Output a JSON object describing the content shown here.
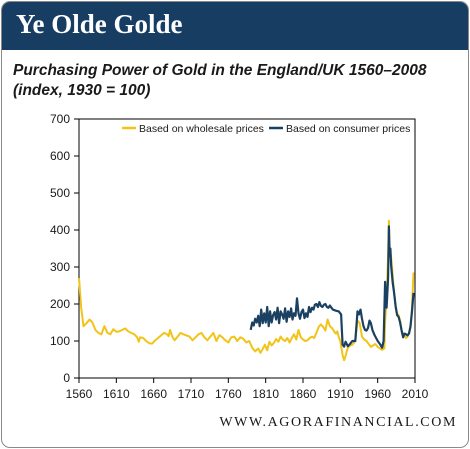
{
  "header": {
    "title": "Ye Olde Golde"
  },
  "subtitle": {
    "line1": "Purchasing Power of Gold in the England/UK 1560–2008",
    "line2": "(index, 1930 = 100)"
  },
  "footer": {
    "source": "WWW.AGORAFINANCIAL.COM"
  },
  "colors": {
    "header_bg": "#173d63",
    "wholesale": "#f2c318",
    "consumer": "#1b4162"
  },
  "chart_data": {
    "type": "line",
    "title": "Purchasing Power of Gold in the England/UK 1560–2008",
    "subtitle": "(index, 1930 = 100)",
    "xlim": [
      1560,
      2010
    ],
    "ylim": [
      0,
      700
    ],
    "x_ticks": [
      1560,
      1610,
      1660,
      1710,
      1760,
      1810,
      1860,
      1910,
      1960,
      2010
    ],
    "y_ticks": [
      0,
      100,
      200,
      300,
      400,
      500,
      600,
      700
    ],
    "grid": false,
    "legend_position": "top",
    "series": [
      {
        "name": "Based on wholesale prices",
        "color": "#f2c318",
        "points": [
          [
            1560,
            270
          ],
          [
            1563,
            190
          ],
          [
            1566,
            140
          ],
          [
            1570,
            148
          ],
          [
            1574,
            158
          ],
          [
            1578,
            150
          ],
          [
            1582,
            130
          ],
          [
            1586,
            122
          ],
          [
            1590,
            118
          ],
          [
            1594,
            140
          ],
          [
            1598,
            122
          ],
          [
            1602,
            118
          ],
          [
            1606,
            132
          ],
          [
            1610,
            125
          ],
          [
            1614,
            126
          ],
          [
            1618,
            130
          ],
          [
            1622,
            134
          ],
          [
            1626,
            126
          ],
          [
            1630,
            122
          ],
          [
            1634,
            118
          ],
          [
            1638,
            110
          ],
          [
            1640,
            98
          ],
          [
            1642,
            110
          ],
          [
            1646,
            108
          ],
          [
            1650,
            100
          ],
          [
            1654,
            94
          ],
          [
            1658,
            93
          ],
          [
            1662,
            102
          ],
          [
            1666,
            108
          ],
          [
            1670,
            115
          ],
          [
            1674,
            122
          ],
          [
            1678,
            118
          ],
          [
            1680,
            113
          ],
          [
            1682,
            130
          ],
          [
            1685,
            112
          ],
          [
            1688,
            102
          ],
          [
            1692,
            112
          ],
          [
            1696,
            122
          ],
          [
            1700,
            118
          ],
          [
            1704,
            115
          ],
          [
            1708,
            112
          ],
          [
            1712,
            102
          ],
          [
            1716,
            110
          ],
          [
            1720,
            118
          ],
          [
            1724,
            122
          ],
          [
            1728,
            110
          ],
          [
            1732,
            102
          ],
          [
            1736,
            112
          ],
          [
            1740,
            122
          ],
          [
            1744,
            100
          ],
          [
            1748,
            116
          ],
          [
            1752,
            110
          ],
          [
            1756,
            102
          ],
          [
            1760,
            96
          ],
          [
            1764,
            110
          ],
          [
            1768,
            112
          ],
          [
            1772,
            100
          ],
          [
            1776,
            110
          ],
          [
            1780,
            106
          ],
          [
            1784,
            96
          ],
          [
            1788,
            100
          ],
          [
            1792,
            82
          ],
          [
            1796,
            72
          ],
          [
            1800,
            80
          ],
          [
            1803,
            68
          ],
          [
            1806,
            78
          ],
          [
            1809,
            90
          ],
          [
            1812,
            75
          ],
          [
            1815,
            98
          ],
          [
            1818,
            88
          ],
          [
            1821,
            95
          ],
          [
            1824,
            105
          ],
          [
            1827,
            98
          ],
          [
            1830,
            112
          ],
          [
            1833,
            104
          ],
          [
            1836,
            100
          ],
          [
            1839,
            108
          ],
          [
            1842,
            96
          ],
          [
            1845,
            108
          ],
          [
            1848,
            118
          ],
          [
            1851,
            104
          ],
          [
            1854,
            130
          ],
          [
            1857,
            110
          ],
          [
            1860,
            104
          ],
          [
            1863,
            100
          ],
          [
            1866,
            102
          ],
          [
            1869,
            108
          ],
          [
            1872,
            112
          ],
          [
            1875,
            108
          ],
          [
            1878,
            122
          ],
          [
            1881,
            138
          ],
          [
            1884,
            145
          ],
          [
            1887,
            138
          ],
          [
            1890,
            128
          ],
          [
            1893,
            158
          ],
          [
            1896,
            140
          ],
          [
            1899,
            135
          ],
          [
            1902,
            125
          ],
          [
            1904,
            120
          ],
          [
            1906,
            126
          ],
          [
            1908,
            110
          ],
          [
            1910,
            100
          ],
          [
            1913,
            62
          ],
          [
            1915,
            48
          ],
          [
            1917,
            60
          ],
          [
            1920,
            82
          ],
          [
            1923,
            88
          ],
          [
            1926,
            90
          ],
          [
            1930,
            100
          ],
          [
            1933,
            155
          ],
          [
            1936,
            148
          ],
          [
            1939,
            112
          ],
          [
            1942,
            104
          ],
          [
            1945,
            100
          ],
          [
            1948,
            92
          ],
          [
            1951,
            84
          ],
          [
            1954,
            88
          ],
          [
            1957,
            92
          ],
          [
            1960,
            84
          ],
          [
            1963,
            80
          ],
          [
            1966,
            76
          ],
          [
            1969,
            80
          ],
          [
            1970,
            152
          ],
          [
            1972,
            218
          ],
          [
            1974,
            330
          ],
          [
            1975,
            425
          ],
          [
            1976,
            350
          ],
          [
            1978,
            328
          ],
          [
            1980,
            280
          ],
          [
            1982,
            230
          ],
          [
            1984,
            190
          ],
          [
            1986,
            175
          ],
          [
            1988,
            170
          ],
          [
            1990,
            155
          ],
          [
            1992,
            130
          ],
          [
            1994,
            118
          ],
          [
            1996,
            115
          ],
          [
            1998,
            108
          ],
          [
            2000,
            112
          ],
          [
            2002,
            122
          ],
          [
            2004,
            135
          ],
          [
            2006,
            190
          ],
          [
            2008,
            285
          ]
        ]
      },
      {
        "name": "Based on consumer prices",
        "color": "#1b4162",
        "points": [
          [
            1790,
            130
          ],
          [
            1792,
            150
          ],
          [
            1794,
            142
          ],
          [
            1796,
            160
          ],
          [
            1798,
            150
          ],
          [
            1800,
            168
          ],
          [
            1802,
            140
          ],
          [
            1804,
            185
          ],
          [
            1806,
            148
          ],
          [
            1808,
            175
          ],
          [
            1810,
            150
          ],
          [
            1812,
            192
          ],
          [
            1814,
            140
          ],
          [
            1816,
            180
          ],
          [
            1818,
            150
          ],
          [
            1820,
            170
          ],
          [
            1822,
            178
          ],
          [
            1824,
            158
          ],
          [
            1826,
            190
          ],
          [
            1828,
            148
          ],
          [
            1830,
            180
          ],
          [
            1832,
            172
          ],
          [
            1834,
            160
          ],
          [
            1836,
            188
          ],
          [
            1838,
            152
          ],
          [
            1840,
            180
          ],
          [
            1842,
            165
          ],
          [
            1844,
            188
          ],
          [
            1846,
            158
          ],
          [
            1848,
            175
          ],
          [
            1850,
            168
          ],
          [
            1852,
            215
          ],
          [
            1854,
            175
          ],
          [
            1856,
            160
          ],
          [
            1858,
            178
          ],
          [
            1860,
            185
          ],
          [
            1862,
            162
          ],
          [
            1864,
            175
          ],
          [
            1866,
            165
          ],
          [
            1868,
            192
          ],
          [
            1870,
            178
          ],
          [
            1872,
            190
          ],
          [
            1874,
            185
          ],
          [
            1876,
            198
          ],
          [
            1878,
            200
          ],
          [
            1880,
            192
          ],
          [
            1882,
            205
          ],
          [
            1884,
            195
          ],
          [
            1886,
            192
          ],
          [
            1888,
            198
          ],
          [
            1890,
            200
          ],
          [
            1892,
            192
          ],
          [
            1894,
            190
          ],
          [
            1896,
            196
          ],
          [
            1898,
            190
          ],
          [
            1900,
            185
          ],
          [
            1904,
            182
          ],
          [
            1908,
            180
          ],
          [
            1911,
            172
          ],
          [
            1913,
            90
          ],
          [
            1915,
            85
          ],
          [
            1917,
            98
          ],
          [
            1920,
            86
          ],
          [
            1923,
            92
          ],
          [
            1926,
            100
          ],
          [
            1930,
            100
          ],
          [
            1933,
            180
          ],
          [
            1935,
            172
          ],
          [
            1937,
            185
          ],
          [
            1939,
            160
          ],
          [
            1941,
            140
          ],
          [
            1943,
            130
          ],
          [
            1945,
            128
          ],
          [
            1947,
            135
          ],
          [
            1949,
            155
          ],
          [
            1951,
            148
          ],
          [
            1953,
            130
          ],
          [
            1956,
            115
          ],
          [
            1960,
            100
          ],
          [
            1963,
            92
          ],
          [
            1966,
            82
          ],
          [
            1968,
            100
          ],
          [
            1970,
            260
          ],
          [
            1972,
            190
          ],
          [
            1974,
            270
          ],
          [
            1975,
            410
          ],
          [
            1976,
            330
          ],
          [
            1977,
            350
          ],
          [
            1978,
            305
          ],
          [
            1980,
            260
          ],
          [
            1982,
            230
          ],
          [
            1984,
            195
          ],
          [
            1986,
            170
          ],
          [
            1988,
            165
          ],
          [
            1990,
            150
          ],
          [
            1992,
            128
          ],
          [
            1994,
            110
          ],
          [
            1996,
            120
          ],
          [
            1998,
            118
          ],
          [
            2000,
            115
          ],
          [
            2002,
            120
          ],
          [
            2004,
            140
          ],
          [
            2006,
            180
          ],
          [
            2008,
            230
          ]
        ]
      }
    ]
  }
}
